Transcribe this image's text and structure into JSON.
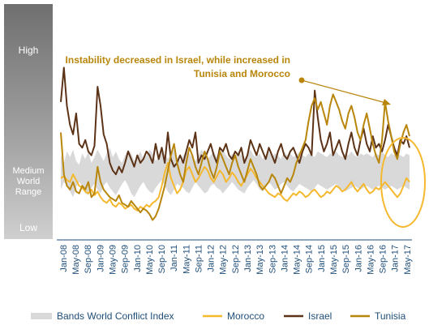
{
  "chart_data": {
    "type": "line",
    "title": "",
    "xlabel": "",
    "ylabel": "",
    "y_band_labels": [
      "High",
      "Medium World Range",
      "Low"
    ],
    "x_tick_labels": [
      "Jan-08",
      "May-08",
      "Sep-08",
      "Jan-09",
      "May-09",
      "Sep-09",
      "Jan-10",
      "May-10",
      "Sep-10",
      "Jan-11",
      "May-11",
      "Sep-11",
      "Jan-12",
      "May-12",
      "Sep-12",
      "Jan-13",
      "May-13",
      "Sep-13",
      "Jan-14",
      "May-14",
      "Sep-14",
      "Jan-15",
      "May-15",
      "Sep-15",
      "Jan-16",
      "May-16",
      "Sep-16",
      "Jan-17",
      "May-17"
    ],
    "ylim": [
      0,
      100
    ],
    "annotation": "Instability decreased in Israel, while increased in Tunisia and Morocco",
    "legend_position": "bottom",
    "grid": false,
    "series": [
      {
        "name": "Bands World Conflict Index",
        "kind": "band",
        "color": "#d9d9d9",
        "lower": [
          26,
          30,
          28,
          25,
          22,
          27,
          30,
          28,
          24,
          23,
          27,
          29,
          26,
          24,
          28,
          30,
          27,
          25,
          23,
          26,
          29,
          31,
          28,
          24,
          22,
          25,
          28,
          30,
          27,
          25,
          24,
          27,
          29,
          31,
          28,
          25,
          23,
          26,
          29,
          28,
          27,
          25,
          24,
          27,
          30,
          28,
          26,
          24,
          25,
          28,
          29,
          27,
          26,
          24,
          26,
          28,
          30,
          28,
          26,
          25,
          24,
          27,
          29,
          31,
          29,
          26,
          25,
          27,
          30,
          28,
          26,
          27,
          29,
          30,
          28,
          26,
          25,
          27,
          29,
          28,
          27,
          26,
          25,
          27,
          29,
          28,
          27,
          26,
          27,
          28,
          29,
          27,
          26,
          25,
          26,
          27,
          28,
          27,
          26,
          27,
          28,
          27,
          26,
          27,
          28,
          27,
          26,
          27,
          28,
          27,
          26,
          27,
          28,
          27,
          26
        ],
        "upper": [
          44,
          40,
          46,
          43,
          47,
          41,
          39,
          45,
          42,
          46,
          40,
          43,
          47,
          44,
          41,
          45,
          48,
          43,
          46,
          42,
          40,
          44,
          47,
          45,
          41,
          43,
          46,
          42,
          44,
          47,
          45,
          41,
          43,
          46,
          44,
          42,
          45,
          47,
          43,
          41,
          44,
          46,
          45,
          43,
          41,
          44,
          47,
          45,
          42,
          44,
          46,
          43,
          45,
          47,
          44,
          42,
          45,
          43,
          46,
          44,
          42,
          45,
          47,
          44,
          43,
          45,
          42,
          44,
          46,
          43,
          45,
          44,
          42,
          46,
          44,
          45,
          43,
          44,
          46,
          44,
          43,
          45,
          44,
          43,
          46,
          45,
          44,
          43,
          45,
          44,
          46,
          44,
          43,
          45,
          44,
          46,
          44,
          43,
          45,
          44,
          45,
          44,
          43,
          45,
          44,
          46,
          44,
          43,
          45,
          44,
          45,
          44,
          43,
          45,
          44
        ]
      },
      {
        "name": "Morocco",
        "color": "#f5b82e",
        "values": [
          32,
          33,
          31,
          30,
          34,
          31,
          28,
          27,
          25,
          24,
          26,
          23,
          25,
          22,
          20,
          19,
          21,
          18,
          17,
          19,
          18,
          16,
          17,
          18,
          16,
          15,
          17,
          16,
          18,
          17,
          19,
          20,
          22,
          28,
          35,
          40,
          32,
          28,
          24,
          26,
          30,
          36,
          38,
          34,
          30,
          32,
          35,
          38,
          36,
          32,
          30,
          33,
          36,
          34,
          30,
          32,
          35,
          33,
          30,
          28,
          31,
          34,
          37,
          35,
          32,
          30,
          28,
          26,
          24,
          23,
          22,
          24,
          23,
          21,
          20,
          22,
          24,
          23,
          25,
          24,
          22,
          23,
          25,
          26,
          24,
          22,
          23,
          25,
          24,
          26,
          28,
          27,
          25,
          26,
          28,
          30,
          27,
          25,
          27,
          29,
          26,
          24,
          25,
          27,
          26,
          28,
          30,
          28,
          26,
          24,
          22,
          24,
          28,
          32,
          30
        ]
      },
      {
        "name": "Israel",
        "color": "#5c3317",
        "values": [
          72,
          90,
          70,
          60,
          55,
          66,
          50,
          48,
          52,
          46,
          44,
          49,
          80,
          70,
          55,
          50,
          40,
          36,
          34,
          38,
          35,
          40,
          46,
          42,
          38,
          44,
          40,
          42,
          46,
          44,
          40,
          50,
          42,
          48,
          40,
          56,
          42,
          38,
          40,
          44,
          40,
          46,
          52,
          48,
          56,
          40,
          44,
          42,
          46,
          50,
          44,
          40,
          48,
          46,
          50,
          44,
          42,
          46,
          44,
          48,
          40,
          44,
          52,
          48,
          44,
          50,
          46,
          42,
          48,
          44,
          40,
          46,
          50,
          44,
          42,
          46,
          48,
          44,
          40,
          46,
          50,
          48,
          44,
          78,
          64,
          52,
          46,
          50,
          56,
          44,
          48,
          52,
          46,
          42,
          50,
          56,
          48,
          44,
          52,
          58,
          50,
          46,
          54,
          48,
          50,
          46,
          52,
          60,
          54,
          48,
          44,
          52,
          50,
          54,
          48
        ]
      },
      {
        "name": "Tunisia",
        "color": "#b8860b",
        "values": [
          56,
          34,
          28,
          26,
          30,
          25,
          24,
          28,
          26,
          30,
          22,
          24,
          38,
          30,
          26,
          24,
          22,
          21,
          20,
          23,
          19,
          18,
          17,
          20,
          18,
          16,
          14,
          16,
          15,
          13,
          10,
          12,
          16,
          22,
          28,
          36,
          44,
          50,
          40,
          34,
          30,
          40,
          48,
          44,
          38,
          34,
          40,
          46,
          42,
          36,
          32,
          38,
          46,
          42,
          38,
          34,
          40,
          44,
          38,
          34,
          30,
          36,
          42,
          38,
          34,
          28,
          26,
          28,
          30,
          34,
          32,
          28,
          24,
          28,
          32,
          30,
          34,
          40,
          44,
          48,
          52,
          62,
          70,
          74,
          68,
          72,
          66,
          60,
          70,
          76,
          72,
          68,
          62,
          58,
          66,
          70,
          64,
          56,
          52,
          60,
          66,
          58,
          50,
          44,
          40,
          52,
          72,
          62,
          54,
          46,
          42,
          50,
          56,
          60,
          54
        ]
      }
    ]
  }
}
